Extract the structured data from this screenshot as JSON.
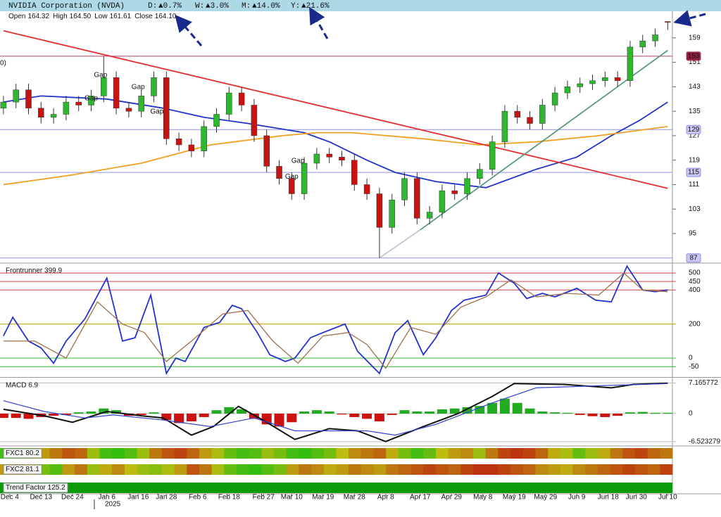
{
  "header": {
    "title": "NVIDIA Corporation (NVDA)",
    "changes": [
      {
        "label": "D:",
        "value": "▲0.7%"
      },
      {
        "label": "W:",
        "value": "▲3.0%"
      },
      {
        "label": "M:",
        "value": "▲14.0%"
      },
      {
        "label": "Y:",
        "value": "▲21.6%"
      }
    ],
    "ohlc": [
      {
        "label": "Open",
        "value": "164.32"
      },
      {
        "label": "High",
        "value": "164.50"
      },
      {
        "label": "Low",
        "value": "161.61"
      },
      {
        "label": "Close",
        "value": "164.10"
      }
    ]
  },
  "chart_data": [
    {
      "type": "candlestick",
      "up_color": "#2db82d",
      "down_color": "#cc1111",
      "clipped_label": "0)",
      "x": [
        0,
        4,
        8,
        12,
        16,
        20,
        24,
        28,
        32,
        36,
        40,
        44,
        48,
        52,
        56,
        60,
        64,
        68,
        72,
        76,
        80,
        84,
        88,
        92,
        96,
        100,
        104,
        108,
        112,
        116,
        120,
        124,
        128,
        132,
        136,
        140,
        144,
        148,
        152,
        156,
        160,
        164,
        168,
        172,
        176,
        180,
        184,
        188,
        192,
        196,
        200,
        204,
        208,
        212
      ],
      "open": [
        136,
        138,
        142,
        136,
        133,
        134,
        138,
        137,
        140,
        146,
        136,
        135,
        140,
        146,
        126,
        124,
        122,
        130,
        134,
        141,
        137,
        127,
        117,
        113,
        108,
        118,
        121,
        120,
        119,
        111,
        108,
        97,
        106,
        113,
        100,
        102,
        109,
        108,
        113,
        116,
        125,
        135,
        133,
        131,
        137,
        141,
        143,
        144,
        145,
        146,
        145,
        156,
        158,
        164.32
      ],
      "high": [
        140,
        144,
        144,
        138,
        136,
        140,
        140,
        142,
        153,
        148,
        138,
        142,
        148,
        148,
        128,
        126,
        132,
        136,
        143,
        143,
        139,
        129,
        119,
        115,
        120,
        123,
        123,
        122,
        121,
        113,
        110,
        108,
        115,
        115,
        104,
        111,
        111,
        115,
        118,
        127,
        137,
        137,
        135,
        139,
        143,
        145,
        146,
        147,
        148,
        148,
        158,
        160,
        162,
        164.5
      ],
      "low": [
        134,
        136,
        134,
        131,
        131,
        132,
        135,
        135,
        138,
        134,
        133,
        133,
        138,
        124,
        122,
        120,
        120,
        128,
        132,
        135,
        125,
        115,
        111,
        106,
        106,
        116,
        118,
        117,
        109,
        106,
        87,
        95,
        104,
        98,
        98,
        100,
        106,
        106,
        111,
        114,
        123,
        131,
        129,
        129,
        135,
        139,
        141,
        142,
        143,
        143,
        143,
        154,
        156,
        161.61
      ],
      "close": [
        138,
        142,
        136,
        133,
        134,
        138,
        137,
        140,
        146,
        136,
        135,
        140,
        146,
        126,
        124,
        122,
        130,
        134,
        141,
        137,
        127,
        117,
        113,
        108,
        118,
        121,
        120,
        119,
        111,
        108,
        97,
        106,
        113,
        100,
        102,
        109,
        108,
        113,
        116,
        125,
        135,
        133,
        131,
        137,
        141,
        143,
        144,
        145,
        146,
        145,
        156,
        158,
        160,
        164.1
      ],
      "xlim": [
        -1.1,
        213.5
      ],
      "xticks": [
        {
          "value": 2,
          "label": "Dec 4"
        },
        {
          "value": 12,
          "label": "Dec 13"
        },
        {
          "value": 22,
          "label": "Dec 24"
        },
        {
          "value": 33,
          "label": "Jan 6"
        },
        {
          "value": 43,
          "label": "Jan 16"
        },
        {
          "value": 52,
          "label": "Jan 28"
        },
        {
          "value": 62,
          "label": "Feb 6"
        },
        {
          "value": 72,
          "label": "Feb 18"
        },
        {
          "value": 83,
          "label": "Feb 27"
        },
        {
          "value": 92,
          "label": "Mar 10"
        },
        {
          "value": 102,
          "label": "Mar 19"
        },
        {
          "value": 112,
          "label": "Mar 28"
        },
        {
          "value": 122,
          "label": "Apr 8"
        },
        {
          "value": 133,
          "label": "Apr 17"
        },
        {
          "value": 143,
          "label": "Apr 29"
        },
        {
          "value": 153,
          "label": "May 8"
        },
        {
          "value": 163,
          "label": "May 19"
        },
        {
          "value": 173,
          "label": "May 29"
        },
        {
          "value": 183,
          "label": "Jun 9"
        },
        {
          "value": 193,
          "label": "Jun 18"
        },
        {
          "value": 202,
          "label": "Jun 30"
        },
        {
          "value": 212,
          "label": "Jul 10"
        }
      ],
      "year_marker": {
        "value": 29,
        "label": "2025"
      },
      "ylim": [
        85.8,
        167.7
      ],
      "yticks": [
        95,
        103,
        111,
        119,
        127,
        135,
        143,
        151,
        159
      ],
      "overlays": [
        {
          "color": "#2233cc",
          "x": [
            0,
            12,
            33,
            51,
            64,
            78,
            96,
            104,
            116,
            125,
            138,
            154,
            170,
            183,
            194,
            203,
            212
          ],
          "values": [
            138,
            140,
            139,
            136,
            133,
            131,
            128,
            125,
            119,
            115,
            112,
            110,
            116,
            120,
            127,
            132,
            138
          ]
        },
        {
          "color": "#f0a020",
          "x": [
            0,
            21,
            44,
            66,
            89,
            100,
            111,
            134,
            152,
            170,
            190,
            212
          ],
          "values": [
            111,
            114,
            118,
            124,
            127,
            128,
            128,
            126,
            124,
            125,
            127,
            130
          ]
        }
      ],
      "levels": [
        {
          "value": 153,
          "color": "#b04060",
          "box": "#8b2040",
          "text_color": "#ffffff"
        },
        {
          "value": 129,
          "color": "#9090e0",
          "box": "#c8c8f4",
          "text_color": "#202060"
        },
        {
          "value": 115,
          "color": "#9090e0",
          "box": "#c8c8f4",
          "text_color": "#202060"
        },
        {
          "value": 87,
          "color": "#9090e0",
          "box": "#c8c8f4",
          "text_color": "#202060"
        }
      ],
      "trendlines": [
        {
          "color": "#e03030",
          "x": [
            0,
            212
          ],
          "values": [
            161.3,
            109.8
          ]
        },
        {
          "color": "#5a9a80",
          "x": [
            133,
            212
          ],
          "values": [
            96.2,
            154.9
          ]
        },
        {
          "color": "#c0c8d8",
          "x": [
            120,
            133
          ],
          "values": [
            87,
            96.2
          ]
        }
      ],
      "annotations": [
        {
          "text": "Gap",
          "x": 31,
          "y": 146.8,
          "color": "#111111"
        },
        {
          "text": "Gap",
          "x": 28,
          "y": 139.2,
          "color": "#111111"
        },
        {
          "text": "Gap",
          "x": 43,
          "y": 142.9,
          "color": "#111111"
        },
        {
          "text": "Gap",
          "x": 49,
          "y": 134.8,
          "color": "#e03030"
        },
        {
          "text": "Gap",
          "x": 94,
          "y": 118.7,
          "color": "#111111"
        },
        {
          "text": "Gap",
          "x": 92,
          "y": 113.5,
          "color": "#111111"
        }
      ]
    },
    {
      "type": "line",
      "title": "Frontrunner 399.9",
      "ylim": [
        -107,
        554
      ],
      "yticks": [
        500,
        450,
        400,
        200,
        0,
        -50
      ],
      "tick_colors": [
        "#d04040",
        "#d04040",
        "#d04040",
        "#c0a000",
        "#30c030",
        "#30c030"
      ],
      "series": [
        {
          "color": "#2233cc",
          "x": [
            0,
            3,
            8,
            12,
            16,
            20,
            26,
            33,
            38,
            42,
            47,
            52,
            55,
            58,
            64,
            69,
            73,
            76,
            81,
            85,
            90,
            93,
            98,
            102,
            109,
            113,
            120,
            125,
            129,
            134,
            138,
            143,
            147,
            154,
            158,
            163,
            167,
            172,
            176,
            183,
            189,
            194,
            199,
            204,
            208,
            212
          ],
          "values": [
            130,
            240,
            100,
            60,
            -30,
            100,
            230,
            470,
            100,
            120,
            370,
            -90,
            0,
            -20,
            180,
            210,
            310,
            290,
            150,
            20,
            -20,
            0,
            120,
            150,
            200,
            40,
            -90,
            150,
            220,
            20,
            120,
            280,
            340,
            370,
            500,
            440,
            350,
            380,
            360,
            410,
            340,
            330,
            540,
            400,
            390,
            400
          ]
        },
        {
          "color": "#a0704a",
          "x": [
            0,
            10,
            20,
            30,
            38,
            45,
            52,
            60,
            70,
            78,
            86,
            94,
            102,
            110,
            116,
            122,
            130,
            138,
            146,
            154,
            162,
            170,
            180,
            190,
            198,
            204,
            212
          ],
          "values": [
            100,
            100,
            0,
            330,
            200,
            150,
            -20,
            100,
            260,
            280,
            100,
            -30,
            130,
            150,
            80,
            -60,
            180,
            140,
            300,
            360,
            460,
            360,
            380,
            370,
            500,
            400,
            390
          ]
        }
      ]
    },
    {
      "type": "macd",
      "title": "MACD 6.9",
      "ylim": [
        -7.2,
        8.2
      ],
      "yticks": [
        7.165772,
        0,
        -6.523279
      ],
      "series": [
        {
          "color": "#111111",
          "x": [
            0,
            13,
            22,
            33,
            44,
            51,
            60,
            67,
            75,
            84,
            93,
            104,
            113,
            122,
            134,
            145,
            156,
            163,
            179,
            194,
            201,
            212
          ],
          "values": [
            1,
            -0.5,
            -2,
            0.5,
            -0.5,
            -1,
            -5,
            -3,
            1.7,
            -2,
            -6,
            -3.5,
            -4,
            -6.5,
            -3,
            0,
            4,
            7,
            6.8,
            6,
            6.8,
            7.1
          ]
        },
        {
          "color": "#3344cc",
          "x": [
            0,
            13,
            26,
            35,
            51,
            66,
            80,
            93,
            104,
            116,
            125,
            138,
            156,
            170,
            190,
            212
          ],
          "values": [
            3,
            0.5,
            -1,
            -0.3,
            -1.5,
            -3,
            -1,
            -4,
            -4,
            -4,
            -5,
            -2.5,
            2.5,
            6,
            6.5,
            7
          ]
        }
      ],
      "histogram": {
        "up_color": "#22aa22",
        "down_color": "#cc1111",
        "x": [
          0,
          4,
          8,
          12,
          16,
          20,
          24,
          28,
          32,
          36,
          40,
          44,
          48,
          52,
          56,
          60,
          64,
          68,
          72,
          76,
          80,
          84,
          88,
          92,
          96,
          100,
          104,
          108,
          112,
          116,
          120,
          124,
          128,
          132,
          136,
          140,
          144,
          148,
          152,
          156,
          160,
          164,
          168,
          172,
          176,
          180,
          184,
          188,
          192,
          196,
          200,
          204,
          208,
          212
        ],
        "values": [
          -1,
          -1,
          -1.2,
          -0.8,
          -0.5,
          -0.3,
          0.3,
          0.5,
          1.2,
          0.8,
          -0.5,
          -0.3,
          0.3,
          -1.5,
          -2.2,
          -1.8,
          -0.8,
          0.8,
          1.5,
          1,
          -1.2,
          -2.5,
          -3,
          -2,
          0.5,
          0.8,
          0.5,
          -0.2,
          -0.8,
          -1.2,
          -1.8,
          -0.3,
          0.8,
          0.5,
          0.5,
          1,
          1.2,
          1.5,
          1.8,
          2.5,
          3.5,
          2.5,
          1.2,
          0.5,
          0.3,
          0.2,
          -0.3,
          -0.6,
          -0.8,
          -0.5,
          0.3,
          0.4,
          0.2,
          0.2
        ]
      }
    },
    {
      "type": "heatstrip",
      "title": "FXC1 80.2",
      "values": [
        85,
        90,
        70,
        40,
        30,
        20,
        25,
        60,
        85,
        90,
        80,
        60,
        30,
        20,
        15,
        25,
        40,
        55,
        75,
        85,
        80,
        60,
        70,
        85,
        90,
        80,
        70,
        50,
        35,
        30,
        25,
        45,
        70,
        85,
        75,
        50,
        40,
        35,
        60,
        30,
        15,
        10,
        15,
        25,
        45,
        55,
        75,
        60,
        45,
        30,
        20,
        15,
        25,
        30
      ]
    },
    {
      "type": "heatstrip",
      "title": "FXC2 81.1",
      "values": [
        40,
        30,
        50,
        70,
        80,
        40,
        30,
        60,
        45,
        35,
        50,
        60,
        65,
        55,
        40,
        20,
        30,
        55,
        75,
        85,
        90,
        80,
        70,
        40,
        30,
        35,
        45,
        40,
        30,
        35,
        40,
        30,
        25,
        20,
        15,
        20,
        25,
        15,
        10,
        10,
        15,
        20,
        25,
        35,
        40,
        45,
        35,
        30,
        25,
        20,
        15,
        20,
        25,
        15
      ]
    },
    {
      "type": "band",
      "title": "Trend Factor 125.2",
      "color": "#0a9a0a"
    }
  ]
}
